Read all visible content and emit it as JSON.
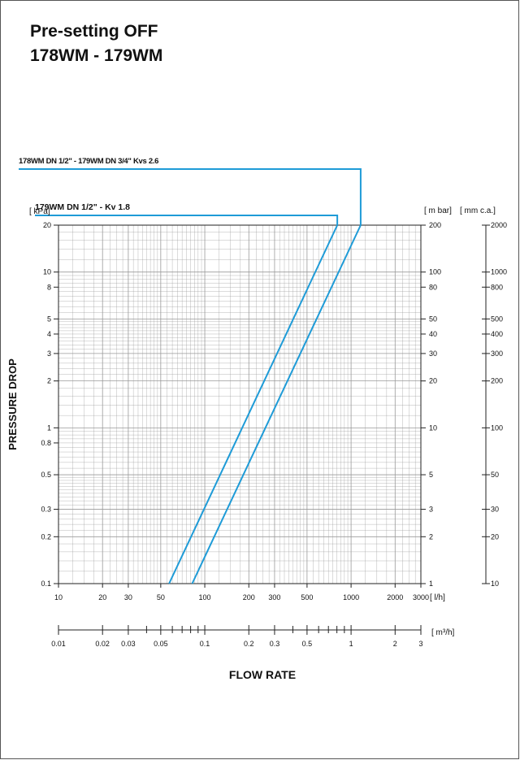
{
  "header": {
    "title_line1": "Pre-setting OFF",
    "title_line2": "178WM  - 179WM"
  },
  "chart_data": {
    "type": "line",
    "x_scale": "log",
    "y_scale": "log",
    "xlim": [
      10,
      3000
    ],
    "ylim": [
      0.1,
      20
    ],
    "grid": true,
    "series": [
      {
        "name": "178WM DN 1/2\" - 179WM DN 3/4\"  Kvs 2.6",
        "kv": 2.6,
        "x": [
          82,
          1163
        ],
        "y": [
          0.1,
          20
        ]
      },
      {
        "name": "179WM DN 1/2\" - Kv 1.8",
        "kv": 1.8,
        "x": [
          57,
          805
        ],
        "y": [
          0.1,
          20
        ]
      }
    ],
    "y_axis_left": {
      "unit": "[ kPa]",
      "ticks": [
        {
          "v": 20,
          "label": "20"
        },
        {
          "v": 10,
          "label": "10"
        },
        {
          "v": 8,
          "label": "8"
        },
        {
          "v": 5,
          "label": "5"
        },
        {
          "v": 4,
          "label": "4"
        },
        {
          "v": 3,
          "label": "3"
        },
        {
          "v": 2,
          "label": "2"
        },
        {
          "v": 1,
          "label": "1"
        },
        {
          "v": 0.8,
          "label": "0.8"
        },
        {
          "v": 0.5,
          "label": "0.5"
        },
        {
          "v": 0.3,
          "label": "0.3"
        },
        {
          "v": 0.2,
          "label": "0.2"
        },
        {
          "v": 0.1,
          "label": "0.1"
        }
      ]
    },
    "y_axis_right": {
      "unit": "[ m bar]",
      "ticks": [
        {
          "v": 20,
          "label": "200"
        },
        {
          "v": 10,
          "label": "100"
        },
        {
          "v": 8,
          "label": "80"
        },
        {
          "v": 5,
          "label": "50"
        },
        {
          "v": 4,
          "label": "40"
        },
        {
          "v": 3,
          "label": "30"
        },
        {
          "v": 2,
          "label": "20"
        },
        {
          "v": 1,
          "label": "10"
        },
        {
          "v": 0.5,
          "label": "5"
        },
        {
          "v": 0.3,
          "label": "3"
        },
        {
          "v": 0.2,
          "label": "2"
        },
        {
          "v": 0.1,
          "label": "1"
        }
      ]
    },
    "y_axis_far_right": {
      "unit": "[ mm c.a.]",
      "ticks": [
        {
          "v": 20,
          "label": "2000"
        },
        {
          "v": 10,
          "label": "1000"
        },
        {
          "v": 8,
          "label": "800"
        },
        {
          "v": 5,
          "label": "500"
        },
        {
          "v": 4,
          "label": "400"
        },
        {
          "v": 3,
          "label": "300"
        },
        {
          "v": 2,
          "label": "200"
        },
        {
          "v": 1,
          "label": "100"
        },
        {
          "v": 0.5,
          "label": "50"
        },
        {
          "v": 0.3,
          "label": "30"
        },
        {
          "v": 0.2,
          "label": "20"
        },
        {
          "v": 0.1,
          "label": "10"
        }
      ]
    },
    "x_axis": {
      "unit": "[ l/h]",
      "ticks": [
        {
          "v": 10,
          "label": "10"
        },
        {
          "v": 20,
          "label": "20"
        },
        {
          "v": 30,
          "label": "30"
        },
        {
          "v": 50,
          "label": "50"
        },
        {
          "v": 100,
          "label": "100"
        },
        {
          "v": 200,
          "label": "200"
        },
        {
          "v": 300,
          "label": "300"
        },
        {
          "v": 500,
          "label": "500"
        },
        {
          "v": 1000,
          "label": "1000"
        },
        {
          "v": 2000,
          "label": "2000"
        },
        {
          "v": 3000,
          "label": "3000"
        }
      ]
    },
    "x_axis_m3h": {
      "unit": "[ m³/h]",
      "ticks": [
        {
          "v": 10,
          "label": "0.01"
        },
        {
          "v": 20,
          "label": "0.02"
        },
        {
          "v": 30,
          "label": "0.03"
        },
        {
          "v": 50,
          "label": "0.05"
        },
        {
          "v": 100,
          "label": "0.1"
        },
        {
          "v": 200,
          "label": "0.2"
        },
        {
          "v": 300,
          "label": "0.3"
        },
        {
          "v": 500,
          "label": "0.5"
        },
        {
          "v": 1000,
          "label": "1"
        },
        {
          "v": 2000,
          "label": "2"
        },
        {
          "v": 3000,
          "label": "3"
        }
      ]
    },
    "ylabel": "PRESSURE DROP",
    "xlabel": "FLOW RATE"
  },
  "colors": {
    "series": "#1e9bd7",
    "grid": "#9a9a9a",
    "axis": "#222222"
  }
}
